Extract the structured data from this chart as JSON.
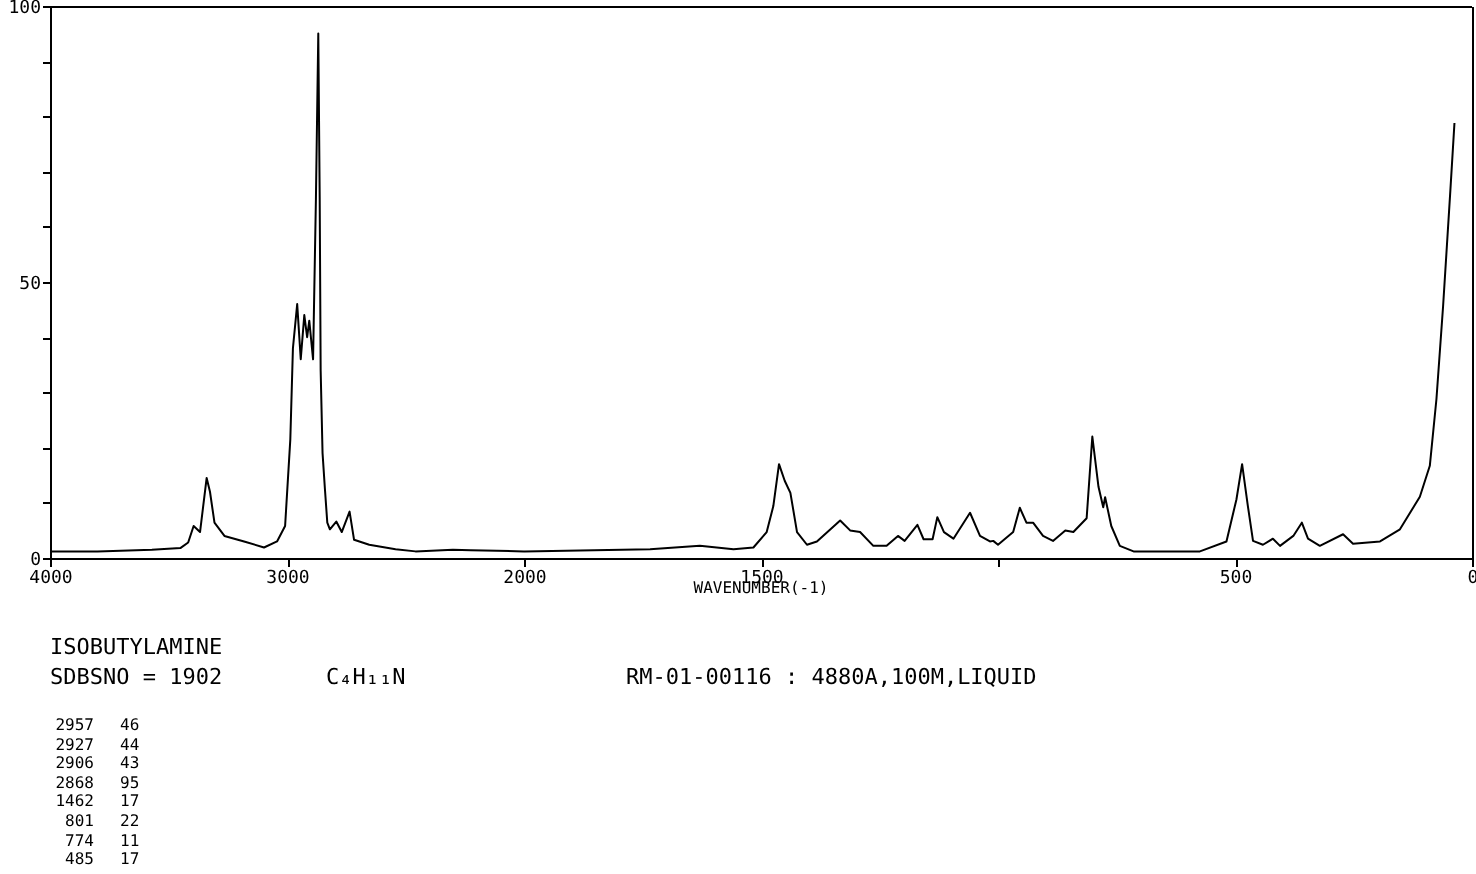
{
  "chart_data": [
    {
      "type": "line",
      "x": [
        4000,
        3800,
        3570,
        3450,
        3417,
        3394,
        3367,
        3339,
        3325,
        3306,
        3264,
        3181,
        3097,
        3042,
        3008,
        2986,
        2975,
        2957,
        2942,
        2927,
        2915,
        2906,
        2890,
        2878,
        2868,
        2862,
        2858,
        2850,
        2840,
        2830,
        2819,
        2792,
        2769,
        2736,
        2717,
        2653,
        2542,
        2458,
        2300,
        2225,
        2000
      ],
      "series": [
        {
          "color": "#000000",
          "values": [
            1.2,
            1.2,
            1.5,
            1.8,
            2.8,
            5.8,
            4.7,
            14.5,
            12,
            6.4,
            4,
            3,
            1.9,
            3,
            5.8,
            21.5,
            38,
            46,
            36,
            44,
            40,
            43,
            36,
            65,
            95,
            65,
            34,
            19,
            12.5,
            6.4,
            5.2,
            6.6,
            4.7,
            8.4,
            3.3,
            2.4,
            1.6,
            1.2,
            1.5,
            1.4,
            1.2
          ]
        }
      ],
      "xlim": [
        4000,
        2000
      ],
      "xticks": [
        4000,
        3000,
        2000
      ],
      "ylim": [
        0,
        100
      ],
      "yticks": [
        0,
        {
          "value": 10,
          "label": null
        },
        {
          "value": 20,
          "label": null
        },
        {
          "value": 30,
          "label": null
        },
        {
          "value": 40,
          "label": null
        },
        50,
        {
          "value": 60,
          "label": null
        },
        {
          "value": 70,
          "label": null
        },
        {
          "value": 80,
          "label": null
        },
        {
          "value": 90,
          "label": null
        },
        100
      ],
      "grid": false,
      "marker": "none",
      "line_style": "solid",
      "annotations": [
        "ISOBUTYLAMINE",
        "SDBSNO = 1902",
        "C₄H₁₁N",
        "RM-01-00116 : 4880A,100M,LIQUID",
        "2957 46",
        "2927 44",
        "2906 43",
        "2868 95",
        "1462 17",
        "801 22",
        "774 11",
        "485 17"
      ]
    },
    {
      "type": "line",
      "xlabel": "WAVENUMBER(-1)",
      "x": [
        2000,
        1734,
        1629,
        1558,
        1516,
        1488,
        1474,
        1462,
        1450,
        1438,
        1424,
        1403,
        1382,
        1333,
        1312,
        1291,
        1263,
        1235,
        1211,
        1197,
        1170,
        1157,
        1138,
        1128,
        1114,
        1094,
        1059,
        1038,
        1017,
        1010,
        1000,
        968,
        954,
        940,
        926,
        905,
        884,
        858,
        841,
        813,
        801,
        788,
        778,
        774,
        761,
        743,
        714,
        574,
        518,
        497,
        485,
        473,
        462,
        441,
        420,
        405,
        377,
        359,
        346,
        321,
        272,
        251,
        194,
        152,
        110,
        89,
        75,
        61,
        46,
        37
      ],
      "series": [
        {
          "color": "#000000",
          "values": [
            1.2,
            1.6,
            2.2,
            1.6,
            1.9,
            4.7,
            9.4,
            17,
            14,
            11.8,
            4.7,
            2.4,
            3,
            6.8,
            5,
            4.7,
            2.2,
            2.2,
            4,
            3.1,
            6,
            3.4,
            3.4,
            7.4,
            4.7,
            3.5,
            8.2,
            4,
            3,
            3.1,
            2.4,
            4.7,
            9.1,
            6.4,
            6.4,
            4,
            3.1,
            5,
            4.7,
            7.2,
            22,
            12.9,
            9.2,
            11,
            5.8,
            2.2,
            1.2,
            1.2,
            3,
            10.6,
            17,
            9.5,
            3.1,
            2.4,
            3.5,
            2.2,
            4,
            6.4,
            3.5,
            2.2,
            4.3,
            2.6,
            3,
            5.2,
            11.1,
            16.7,
            28.8,
            45.6,
            66.1,
            78.8
          ]
        }
      ],
      "xlim": [
        2000,
        0
      ],
      "xticks": [
        1500,
        {
          "value": 1000,
          "label": null
        },
        500,
        0
      ],
      "ylim": [
        0,
        100
      ],
      "tick_labels": "x",
      "grid": false,
      "marker": "none",
      "line_style": "solid"
    }
  ]
}
